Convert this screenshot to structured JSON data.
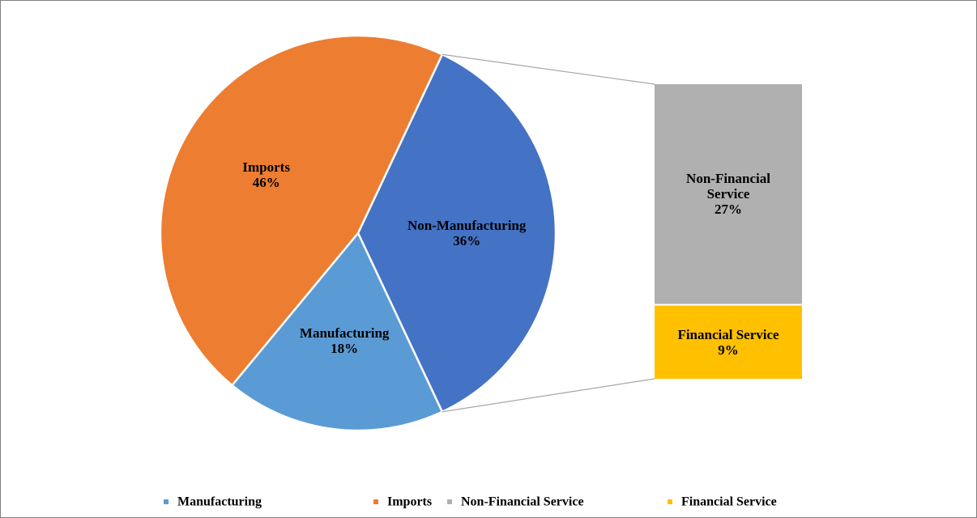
{
  "chart_data": {
    "type": "bar-of-pie",
    "categories": [
      "Manufacturing",
      "Imports",
      "Non-Manufacturing"
    ],
    "values": [
      18,
      46,
      36
    ],
    "value_labels": [
      "18%",
      "46%",
      "36%"
    ],
    "colors": [
      "#5b9bd5",
      "#ed7d31",
      "#4472c4"
    ],
    "breakdown": {
      "categories": [
        "Non-Financial Service",
        "Financial Service"
      ],
      "values": [
        27,
        9
      ],
      "value_labels": [
        "27%",
        "9%"
      ],
      "colors": [
        "#b0b0b0",
        "#ffc000"
      ]
    },
    "legend": "bottom"
  }
}
